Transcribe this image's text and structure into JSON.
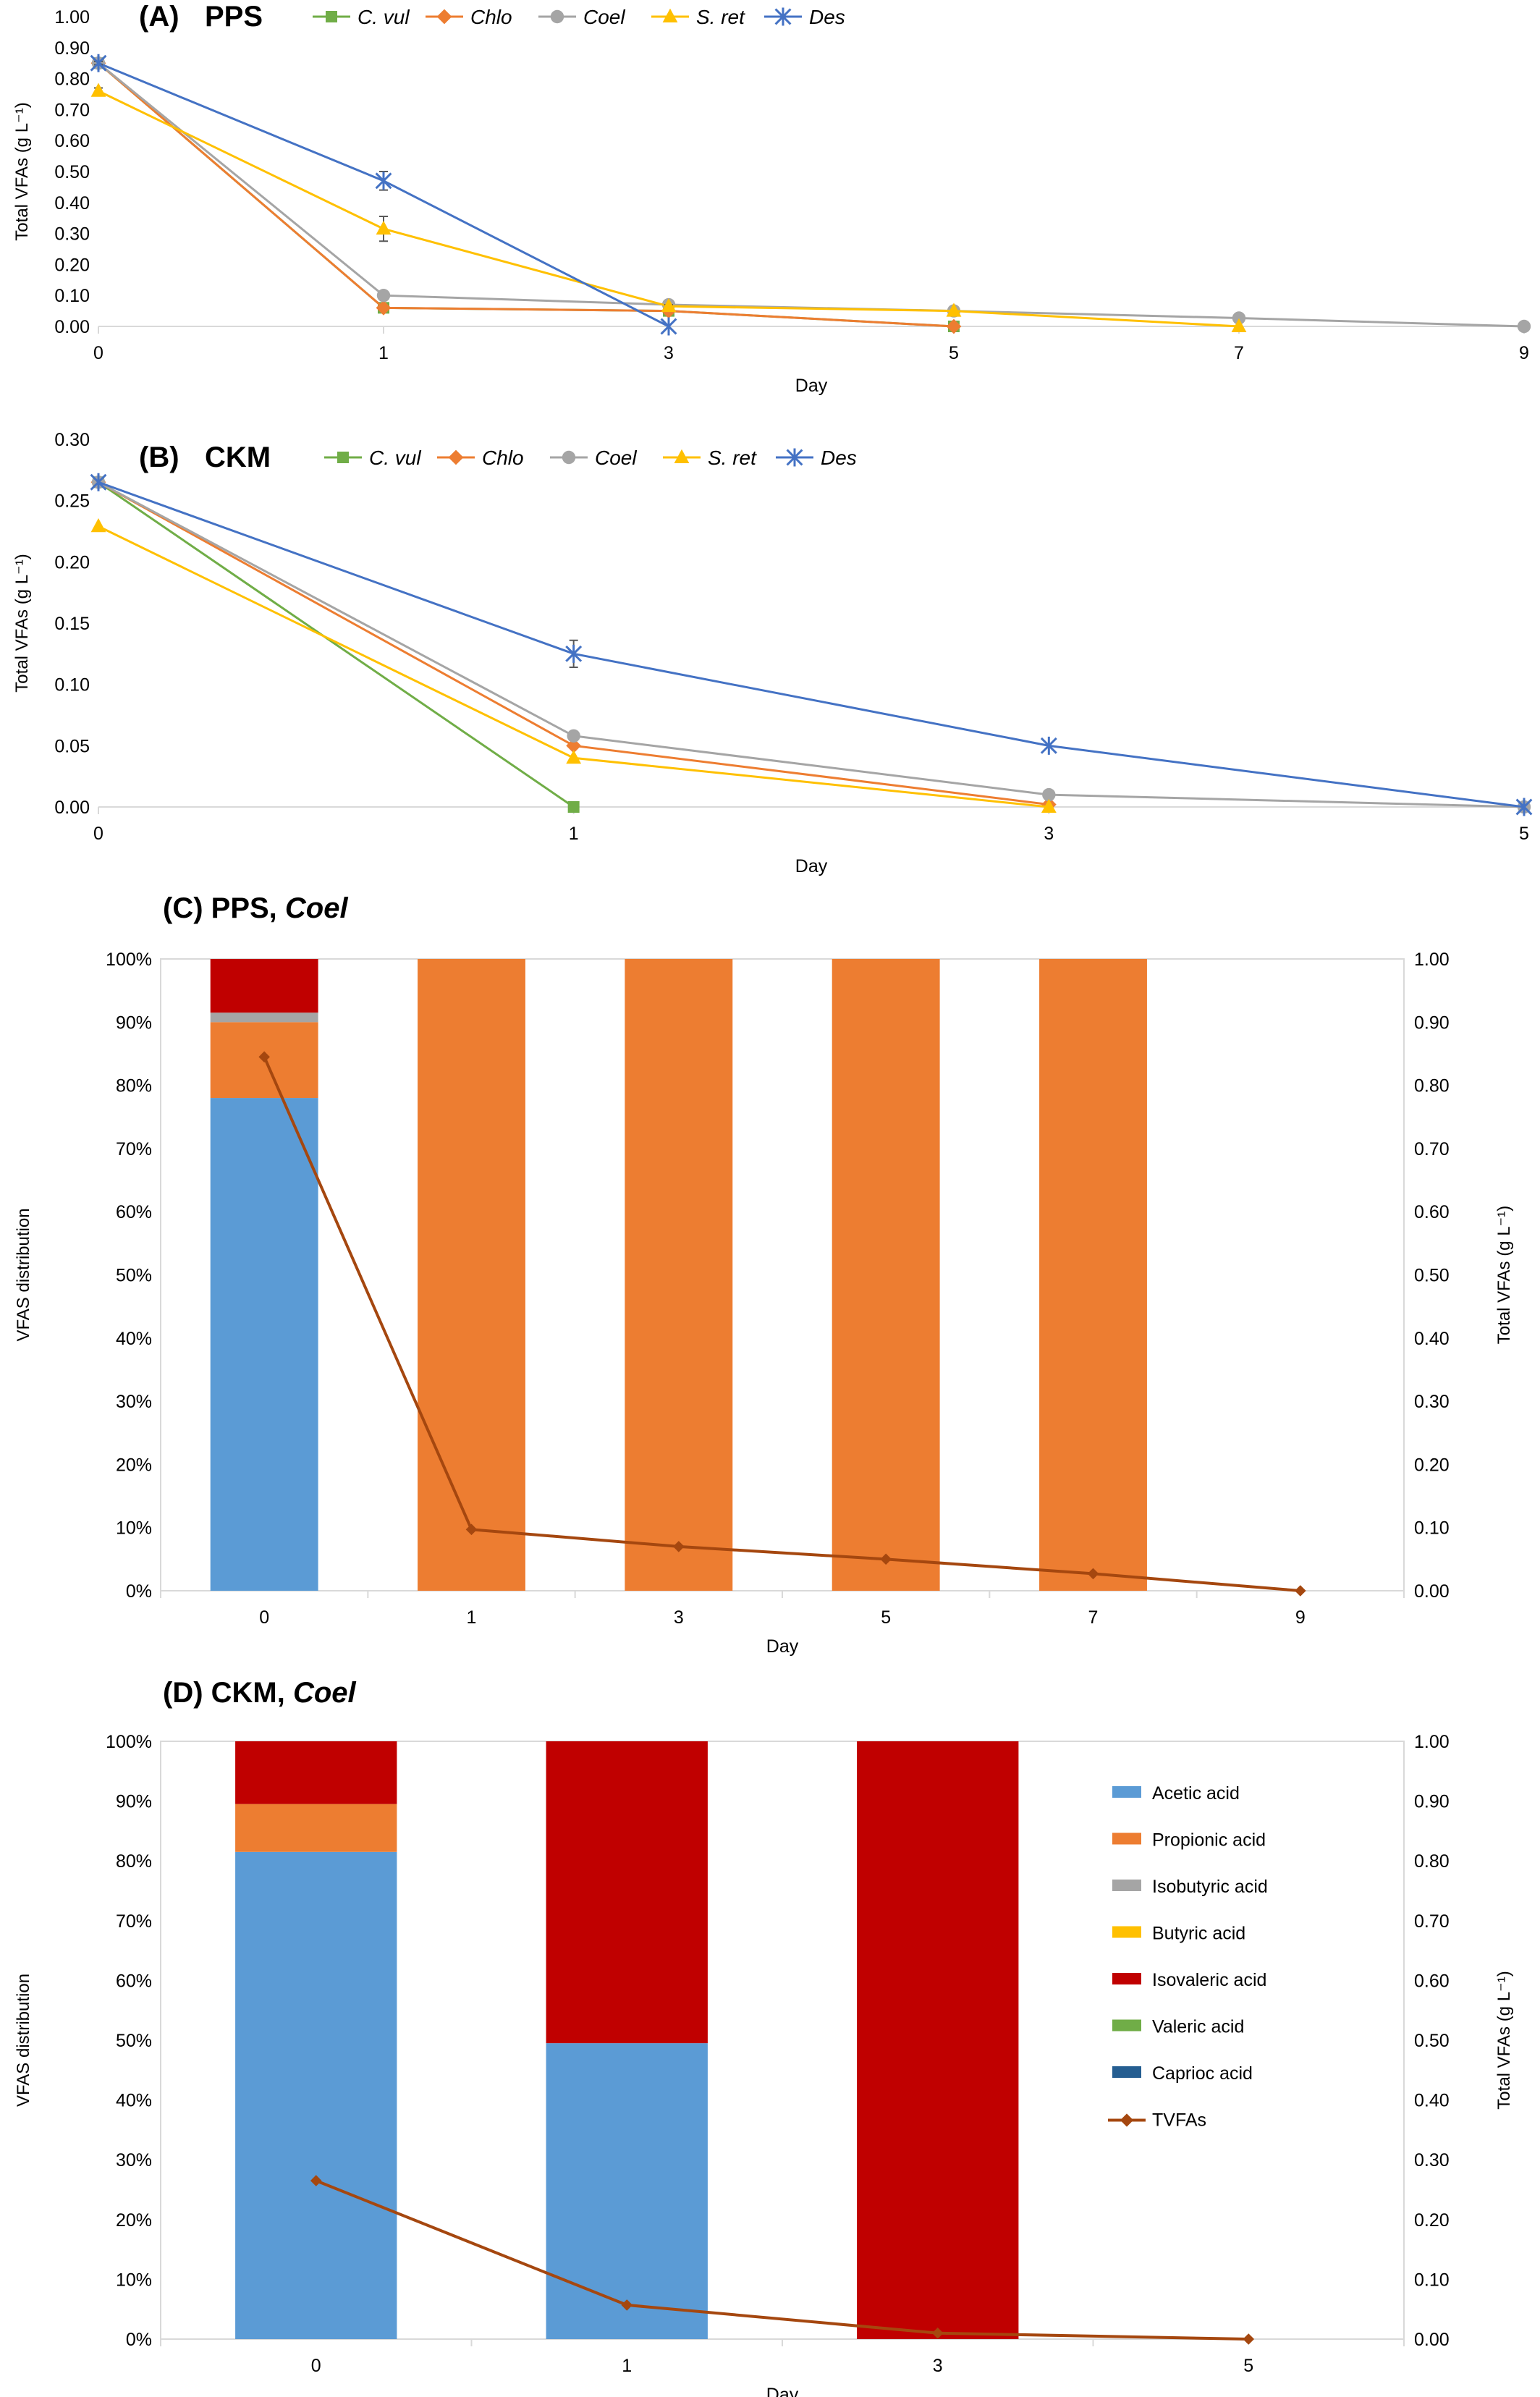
{
  "colors": {
    "cvul": "#70AD47",
    "chlo": "#ED7D31",
    "coel": "#A5A5A5",
    "sret": "#FFC000",
    "des": "#4472C4",
    "acetic": "#5B9BD5",
    "propionic": "#ED7D31",
    "isobutyric": "#A5A5A5",
    "butyric": "#FFC000",
    "isovaleric": "#C00000",
    "valeric": "#70AD47",
    "caprioc": "#255E91",
    "tvfas": "#A5470F",
    "axis": "#D9D9D9"
  },
  "chart_data": [
    {
      "panel": "A",
      "type": "line",
      "label": "(A)",
      "title": "PPS",
      "xlabel": "Day",
      "ylabel": "Total VFAs (g L⁻¹)",
      "x_ticks": [
        "0",
        "1",
        "3",
        "5",
        "7",
        "9"
      ],
      "ylim": [
        0,
        1.0
      ],
      "y_ticks": [
        "0.00",
        "0.10",
        "0.20",
        "0.30",
        "0.40",
        "0.50",
        "0.60",
        "0.70",
        "0.80",
        "0.90",
        "1.00"
      ],
      "legend_position": "top",
      "series": [
        {
          "name": "C. vul",
          "italic": true,
          "marker": "square",
          "color_key": "cvul",
          "values": [
            0.85,
            0.06,
            0.05,
            0.0,
            null,
            null
          ]
        },
        {
          "name": "Chlo",
          "italic": true,
          "marker": "diamond",
          "color_key": "chlo",
          "values": [
            0.85,
            0.06,
            0.05,
            0.0,
            null,
            null
          ]
        },
        {
          "name": "Coel",
          "italic": true,
          "marker": "circle",
          "color_key": "coel",
          "values": [
            0.85,
            0.1,
            0.07,
            0.05,
            0.027,
            0.0
          ]
        },
        {
          "name": "S. ret",
          "italic": true,
          "marker": "triangle",
          "color_key": "sret",
          "values": [
            0.76,
            0.315,
            0.065,
            0.05,
            0.0,
            null
          ],
          "errors": [
            0.01,
            0.04,
            0.005,
            0.0,
            0.0,
            null
          ]
        },
        {
          "name": "Des",
          "italic": true,
          "marker": "asterisk",
          "color_key": "des",
          "values": [
            0.85,
            0.47,
            0.0,
            null,
            null,
            null
          ],
          "errors": [
            0.005,
            0.03,
            0.0,
            null,
            null,
            null
          ]
        }
      ]
    },
    {
      "panel": "B",
      "type": "line",
      "label": "(B)",
      "title": "CKM",
      "xlabel": "Day",
      "ylabel": "Total VFAs (g L⁻¹)",
      "x_ticks": [
        "0",
        "1",
        "3",
        "5"
      ],
      "ylim": [
        0,
        0.3
      ],
      "y_ticks": [
        "0.00",
        "0.05",
        "0.10",
        "0.15",
        "0.20",
        "0.25",
        "0.30"
      ],
      "legend_position": "top",
      "series": [
        {
          "name": "C. vul",
          "italic": true,
          "marker": "square",
          "color_key": "cvul",
          "values": [
            0.265,
            0.0,
            null,
            null
          ]
        },
        {
          "name": "Chlo",
          "italic": true,
          "marker": "diamond",
          "color_key": "chlo",
          "values": [
            0.265,
            0.05,
            0.002,
            null
          ]
        },
        {
          "name": "Coel",
          "italic": true,
          "marker": "circle",
          "color_key": "coel",
          "values": [
            0.265,
            0.058,
            0.01,
            0.0
          ]
        },
        {
          "name": "S. ret",
          "italic": true,
          "marker": "triangle",
          "color_key": "sret",
          "values": [
            0.229,
            0.04,
            0.0,
            null
          ]
        },
        {
          "name": "Des",
          "italic": true,
          "marker": "asterisk",
          "color_key": "des",
          "values": [
            0.265,
            0.125,
            0.05,
            0.0
          ],
          "errors": [
            0.0,
            0.011,
            0.0,
            0.0
          ]
        }
      ]
    },
    {
      "panel": "C",
      "type": "bar",
      "stacked": true,
      "label": "(C) PPS, ",
      "label_italic": "Coel",
      "xlabel": "Day",
      "ylabel": "VFAS distribution",
      "y2label": "Total VFAs (g L⁻¹)",
      "categories": [
        "0",
        "1",
        "3",
        "5",
        "7",
        "9"
      ],
      "ylim": [
        0,
        100
      ],
      "y_ticks": [
        "0%",
        "10%",
        "20%",
        "30%",
        "40%",
        "50%",
        "60%",
        "70%",
        "80%",
        "90%",
        "100%"
      ],
      "y2lim": [
        0,
        1.0
      ],
      "y2_ticks": [
        "0.00",
        "0.10",
        "0.20",
        "0.30",
        "0.40",
        "0.50",
        "0.60",
        "0.70",
        "0.80",
        "0.90",
        "1.00"
      ],
      "series": [
        {
          "name": "Acetic acid",
          "color_key": "acetic",
          "values": [
            78,
            0,
            0,
            0,
            0,
            0
          ]
        },
        {
          "name": "Propionic acid",
          "color_key": "propionic",
          "values": [
            12,
            100,
            100,
            100,
            100,
            0
          ]
        },
        {
          "name": "Isobutyric acid",
          "color_key": "isobutyric",
          "values": [
            1.5,
            0,
            0,
            0,
            0,
            0
          ]
        },
        {
          "name": "Butyric acid",
          "color_key": "butyric",
          "values": [
            0,
            0,
            0,
            0,
            0,
            0
          ]
        },
        {
          "name": "Isovaleric acid",
          "color_key": "isovaleric",
          "values": [
            8.5,
            0,
            0,
            0,
            0,
            0
          ]
        },
        {
          "name": "Valeric acid",
          "color_key": "valeric",
          "values": [
            0,
            0,
            0,
            0,
            0,
            0
          ]
        },
        {
          "name": "Caprioc acid",
          "color_key": "caprioc",
          "values": [
            0,
            0,
            0,
            0,
            0,
            0
          ]
        }
      ],
      "line": {
        "name": "TVFAs",
        "color_key": "tvfas",
        "values": [
          0.845,
          0.097,
          0.07,
          0.05,
          0.027,
          0.0
        ]
      }
    },
    {
      "panel": "D",
      "type": "bar",
      "stacked": true,
      "label": "(D) CKM, ",
      "label_italic": "Coel",
      "xlabel": "Day",
      "ylabel": "VFAS distribution",
      "y2label": "Total VFAs (g L⁻¹)",
      "categories": [
        "0",
        "1",
        "3",
        "5"
      ],
      "ylim": [
        0,
        100
      ],
      "y_ticks": [
        "0%",
        "10%",
        "20%",
        "30%",
        "40%",
        "50%",
        "60%",
        "70%",
        "80%",
        "90%",
        "100%"
      ],
      "y2lim": [
        0,
        1.0
      ],
      "y2_ticks": [
        "0.00",
        "0.10",
        "0.20",
        "0.30",
        "0.40",
        "0.50",
        "0.60",
        "0.70",
        "0.80",
        "0.90",
        "1.00"
      ],
      "legend_position": "right",
      "series": [
        {
          "name": "Acetic acid",
          "color_key": "acetic",
          "values": [
            81.5,
            49.5,
            0,
            0
          ]
        },
        {
          "name": "Propionic acid",
          "color_key": "propionic",
          "values": [
            8,
            0,
            0,
            0
          ]
        },
        {
          "name": "Isobutyric acid",
          "color_key": "isobutyric",
          "values": [
            0,
            0,
            0,
            0
          ]
        },
        {
          "name": "Butyric acid",
          "color_key": "butyric",
          "values": [
            0,
            0,
            0,
            0
          ]
        },
        {
          "name": "Isovaleric acid",
          "color_key": "isovaleric",
          "values": [
            10.5,
            50.5,
            100,
            0
          ]
        },
        {
          "name": "Valeric acid",
          "color_key": "valeric",
          "values": [
            0,
            0,
            0,
            0
          ]
        },
        {
          "name": "Caprioc acid",
          "color_key": "caprioc",
          "values": [
            0,
            0,
            0,
            0
          ]
        }
      ],
      "line": {
        "name": "TVFAs",
        "color_key": "tvfas",
        "values": [
          0.265,
          0.057,
          0.01,
          0.0
        ]
      }
    }
  ]
}
